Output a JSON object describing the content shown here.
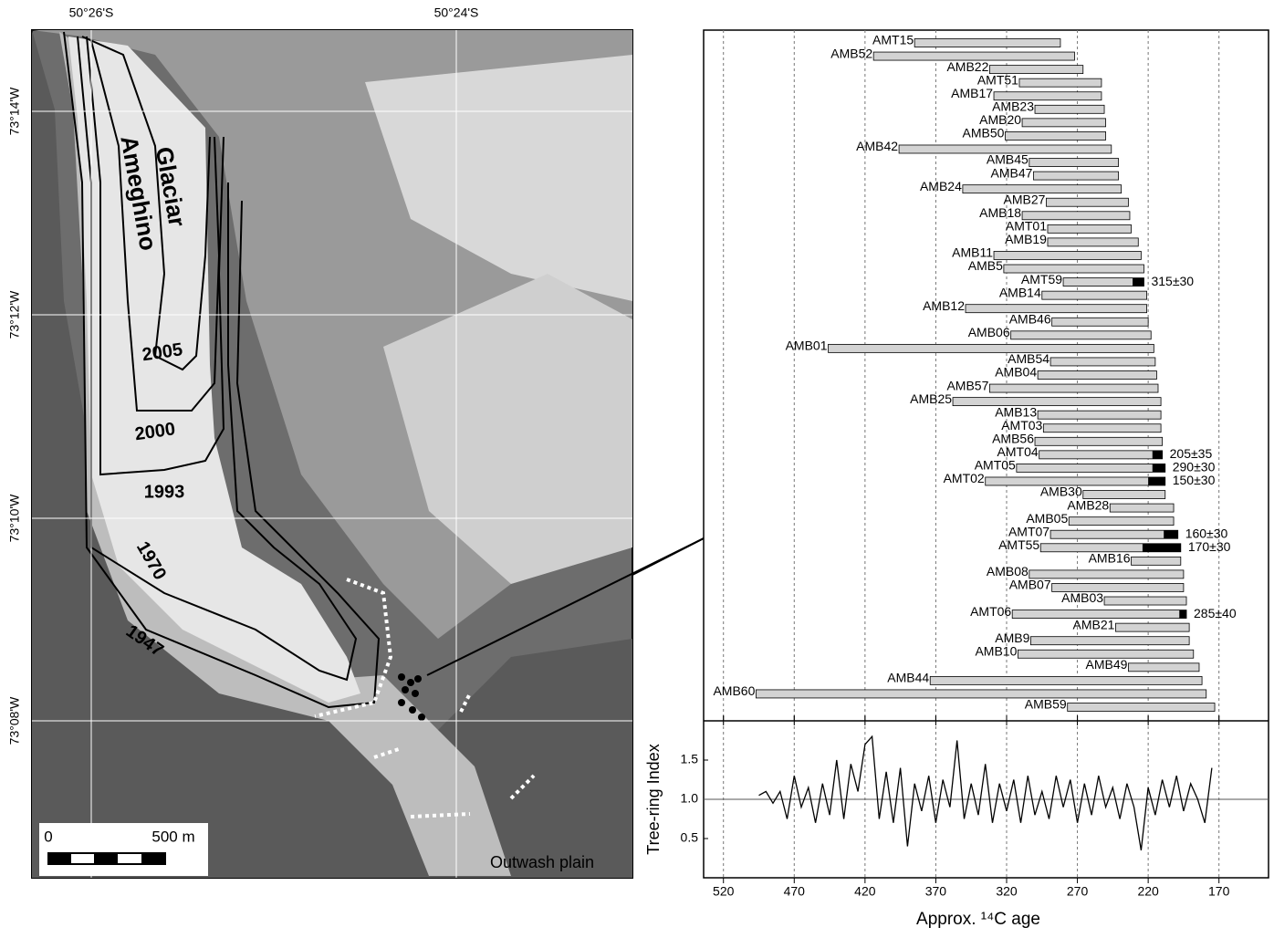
{
  "map": {
    "lat_labels": [
      "50°26'S",
      "50°24'S"
    ],
    "lon_labels": [
      "73°14'W",
      "73°12'W",
      "73°10'W",
      "73°08'W"
    ],
    "glacier_name": [
      "Glaciar",
      "Ameghino"
    ],
    "years": [
      "2005",
      "2000",
      "1993",
      "1970",
      "1947"
    ],
    "scale_labels": [
      "0",
      "500 m"
    ],
    "outwash": "Outwash plain"
  },
  "chart_data": [
    {
      "type": "bar",
      "orientation": "horizontal",
      "color": "#d3d3d3",
      "dated_color": "#000000",
      "xlim": [
        534,
        135
      ],
      "xticks": [
        520,
        470,
        420,
        370,
        320,
        270,
        220,
        170
      ],
      "grid": true,
      "categories": [
        "AMT15",
        "AMB52",
        "AMB22",
        "AMT51",
        "AMB17",
        "AMB23",
        "AMB20",
        "AMB50",
        "AMB42",
        "AMB45",
        "AMB47",
        "AMB24",
        "AMB27",
        "AMB18",
        "AMT01",
        "AMB19",
        "AMB11",
        "AMB5",
        "AMT59",
        "AMB14",
        "AMB12",
        "AMB46",
        "AMB06",
        "AMB01",
        "AMB54",
        "AMB04",
        "AMB57",
        "AMB25",
        "AMB13",
        "AMT03",
        "AMB56",
        "AMT04",
        "AMT05",
        "AMT02",
        "AMB30",
        "AMB28",
        "AMB05",
        "AMT07",
        "AMT55",
        "AMB16",
        "AMB08",
        "AMB07",
        "AMB03",
        "AMT06",
        "AMB21",
        "AMB9",
        "AMB10",
        "AMB49",
        "AMB44",
        "AMB60",
        "AMB59"
      ],
      "start": [
        385,
        414,
        332,
        311,
        329,
        300,
        309,
        321,
        396,
        304,
        301,
        351,
        292,
        309,
        291,
        291,
        329,
        322,
        280,
        295,
        349,
        288,
        317,
        446,
        289,
        298,
        332,
        358,
        298,
        294,
        300,
        297,
        313,
        335,
        266,
        247,
        276,
        289,
        296,
        232,
        304,
        288,
        251,
        316,
        243,
        303,
        312,
        234,
        374,
        497,
        277
      ],
      "end": [
        282,
        272,
        266,
        253,
        253,
        251,
        250,
        250,
        246,
        241,
        241,
        239,
        234,
        233,
        232,
        227,
        225,
        223,
        223,
        221,
        221,
        220,
        218,
        216,
        215,
        214,
        213,
        211,
        211,
        211,
        210,
        210,
        208,
        208,
        208,
        202,
        202,
        199,
        197,
        197,
        195,
        195,
        193,
        193,
        191,
        191,
        188,
        184,
        182,
        179,
        173
      ],
      "dated_start": [
        null,
        null,
        null,
        null,
        null,
        null,
        null,
        null,
        null,
        null,
        null,
        null,
        null,
        null,
        null,
        null,
        null,
        null,
        231,
        null,
        null,
        null,
        null,
        null,
        null,
        null,
        null,
        null,
        null,
        null,
        null,
        217,
        217,
        220,
        null,
        null,
        null,
        209,
        224,
        null,
        null,
        null,
        null,
        198,
        null,
        null,
        null,
        null,
        null,
        null,
        null
      ],
      "dated_end": [
        null,
        null,
        null,
        null,
        null,
        null,
        null,
        null,
        null,
        null,
        null,
        null,
        null,
        null,
        null,
        null,
        null,
        null,
        223,
        null,
        null,
        null,
        null,
        null,
        null,
        null,
        null,
        null,
        null,
        null,
        null,
        210,
        208,
        208,
        null,
        null,
        null,
        199,
        197,
        null,
        null,
        null,
        null,
        193,
        null,
        null,
        null,
        null,
        null,
        null,
        null
      ],
      "date_labels": [
        null,
        null,
        null,
        null,
        null,
        null,
        null,
        null,
        null,
        null,
        null,
        null,
        null,
        null,
        null,
        null,
        null,
        null,
        "315±30",
        null,
        null,
        null,
        null,
        null,
        null,
        null,
        null,
        null,
        null,
        null,
        null,
        "205±35",
        "290±30",
        "150±30",
        null,
        null,
        null,
        "160±30",
        "170±30",
        null,
        null,
        null,
        null,
        "285±40",
        null,
        null,
        null,
        null,
        null,
        null,
        null
      ]
    },
    {
      "type": "line",
      "color": "#000000",
      "ylabel": "Tree-ring Index",
      "xlabel": "Approx. ¹⁴C age",
      "xlim": [
        534,
        135
      ],
      "xticks": [
        520,
        470,
        420,
        370,
        320,
        270,
        220,
        170
      ],
      "ylim": [
        0,
        2
      ],
      "yticks": [
        0.5,
        {
          "value": 1,
          "label": "1.0"
        },
        1.5
      ],
      "reference_line": 1,
      "x": [
        495,
        490,
        485,
        480,
        475,
        470,
        465,
        460,
        455,
        450,
        445,
        440,
        435,
        430,
        425,
        420,
        415,
        410,
        405,
        400,
        395,
        390,
        385,
        380,
        375,
        370,
        365,
        360,
        355,
        350,
        345,
        340,
        335,
        330,
        325,
        320,
        315,
        310,
        305,
        300,
        295,
        290,
        285,
        280,
        275,
        270,
        265,
        260,
        255,
        250,
        245,
        240,
        235,
        230,
        225,
        220,
        215,
        210,
        205,
        200,
        195,
        190,
        185,
        180,
        175
      ],
      "values": [
        1.05,
        1.1,
        0.95,
        1.1,
        0.75,
        1.3,
        0.9,
        1.15,
        0.7,
        1.2,
        0.8,
        1.5,
        0.75,
        1.45,
        1.1,
        1.7,
        1.8,
        0.75,
        1.35,
        0.7,
        1.4,
        0.4,
        1.2,
        0.85,
        1.3,
        0.7,
        1.25,
        0.9,
        1.75,
        0.75,
        1.2,
        0.8,
        1.45,
        0.7,
        1.2,
        0.85,
        1.25,
        0.7,
        1.3,
        0.8,
        1.1,
        0.75,
        1.3,
        0.9,
        1.25,
        0.7,
        1.2,
        0.8,
        1.3,
        0.9,
        1.15,
        0.75,
        1.2,
        0.9,
        0.35,
        1.15,
        0.8,
        1.25,
        0.9,
        1.3,
        0.85,
        1.2,
        1.0,
        0.7,
        1.4
      ]
    }
  ]
}
